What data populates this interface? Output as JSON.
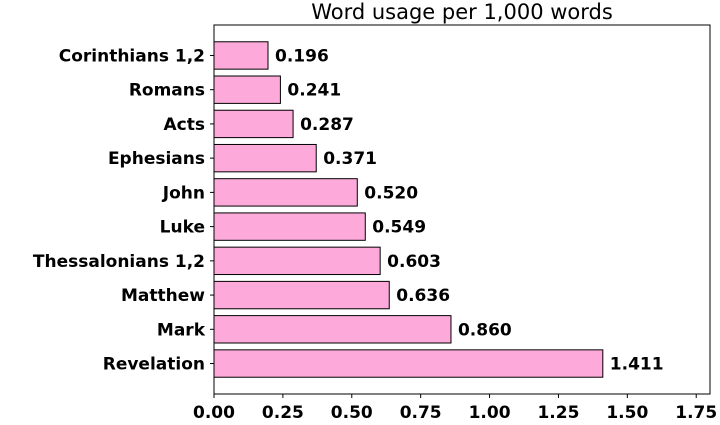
{
  "chart_data": {
    "type": "bar",
    "orientation": "horizontal",
    "title": "Word usage per 1,000 words",
    "xlabel": "",
    "ylabel": "",
    "categories": [
      "Revelation",
      "Mark",
      "Matthew",
      "Thessalonians 1,2",
      "Luke",
      "John",
      "Ephesians",
      "Acts",
      "Romans",
      "Corinthians 1,2"
    ],
    "values": [
      1.411,
      0.86,
      0.636,
      0.603,
      0.549,
      0.52,
      0.371,
      0.287,
      0.241,
      0.196
    ],
    "data_labels": [
      "1.411",
      "0.860",
      "0.636",
      "0.603",
      "0.549",
      "0.520",
      "0.371",
      "0.287",
      "0.241",
      "0.196"
    ],
    "xlim": [
      0,
      1.8
    ],
    "xticks": [
      "0.00",
      "0.25",
      "0.50",
      "0.75",
      "1.00",
      "1.25",
      "1.50",
      "1.75"
    ],
    "grid": false,
    "bar_color": "#fdaada",
    "edge_color": "#000000"
  }
}
